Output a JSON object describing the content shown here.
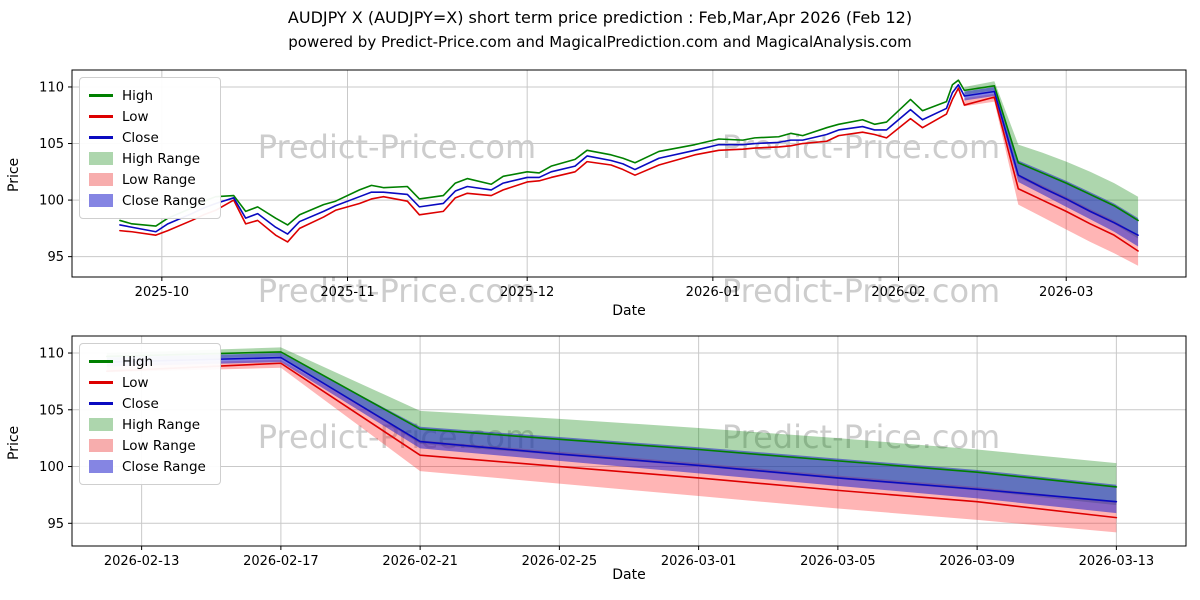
{
  "title": "AUDJPY X (AUDJPY=X) short term price prediction : Feb,Mar,Apr 2026 (Feb 12)",
  "subtitle": "powered by Predict-Price.com and MagicalPrediction.com and MagicalAnalysis.com",
  "watermark": {
    "text": "Predict-Price.com"
  },
  "colors": {
    "high_line": "#008000",
    "low_line": "#dd0000",
    "close_line": "#0a0ac0",
    "high_band": "rgba(0,128,0,0.32)",
    "low_band": "rgba(255,30,30,0.33)",
    "close_band": "rgba(34,34,204,0.55)",
    "grid": "#c9c9c9",
    "watermark_gray": "#cdcdcd"
  },
  "legend": {
    "items": [
      {
        "label": "High",
        "type": "line",
        "color": "#008000"
      },
      {
        "label": "Low",
        "type": "line",
        "color": "#dd0000"
      },
      {
        "label": "Close",
        "type": "line",
        "color": "#0a0ac0"
      },
      {
        "label": "High Range",
        "type": "patch",
        "color": "#add6ad"
      },
      {
        "label": "Low Range",
        "type": "patch",
        "color": "#f7adad"
      },
      {
        "label": "Close Range",
        "type": "patch",
        "color": "#8585e3"
      }
    ]
  },
  "chart_data": [
    {
      "type": "line",
      "name": "historical-and-forecast",
      "xlabel": "Date",
      "ylabel": "Price",
      "x_range": [
        "2025-09-16",
        "2026-03-21"
      ],
      "ylim": [
        93.2,
        111.5
      ],
      "yticks": [
        95,
        100,
        105,
        110
      ],
      "grid": true,
      "legend_position": "upper-left",
      "xticks": [
        {
          "label": "2025-10",
          "date": "2025-10-01"
        },
        {
          "label": "2025-11",
          "date": "2025-11-01"
        },
        {
          "label": "2025-12",
          "date": "2025-12-01"
        },
        {
          "label": "2026-01",
          "date": "2026-01-01"
        },
        {
          "label": "2026-02",
          "date": "2026-02-01"
        },
        {
          "label": "2026-03",
          "date": "2026-03-01"
        }
      ],
      "series": [
        {
          "name": "High",
          "color": "#008000",
          "dates": [
            "2025-09-24",
            "2025-09-26",
            "2025-09-30",
            "2025-10-02",
            "2025-10-06",
            "2025-10-08",
            "2025-10-10",
            "2025-10-13",
            "2025-10-15",
            "2025-10-17",
            "2025-10-20",
            "2025-10-22",
            "2025-10-24",
            "2025-10-28",
            "2025-10-30",
            "2025-11-03",
            "2025-11-05",
            "2025-11-07",
            "2025-11-11",
            "2025-11-13",
            "2025-11-17",
            "2025-11-19",
            "2025-11-21",
            "2025-11-25",
            "2025-11-27",
            "2025-12-01",
            "2025-12-03",
            "2025-12-05",
            "2025-12-09",
            "2025-12-11",
            "2025-12-15",
            "2025-12-17",
            "2025-12-19",
            "2025-12-23",
            "2025-12-29",
            "2026-01-02",
            "2026-01-06",
            "2026-01-08",
            "2026-01-12",
            "2026-01-14",
            "2026-01-16",
            "2026-01-20",
            "2026-01-22",
            "2026-01-26",
            "2026-01-28",
            "2026-01-30",
            "2026-02-03",
            "2026-02-05",
            "2026-02-09",
            "2026-02-10",
            "2026-02-11",
            "2026-02-12",
            "2026-02-17",
            "2026-02-21",
            "2026-02-25",
            "2026-03-01",
            "2026-03-05",
            "2026-03-09",
            "2026-03-13"
          ],
          "values": [
            98.2,
            97.9,
            97.7,
            98.4,
            99.3,
            99.9,
            100.3,
            100.4,
            99.0,
            99.4,
            98.4,
            97.8,
            98.7,
            99.6,
            99.9,
            100.9,
            101.3,
            101.1,
            101.2,
            100.1,
            100.4,
            101.5,
            101.9,
            101.4,
            102.1,
            102.5,
            102.4,
            103.0,
            103.6,
            104.4,
            104.0,
            103.7,
            103.3,
            104.3,
            104.9,
            105.4,
            105.3,
            105.5,
            105.6,
            105.9,
            105.7,
            106.4,
            106.7,
            107.1,
            106.7,
            106.9,
            108.9,
            107.9,
            108.7,
            110.2,
            110.6,
            109.7,
            110.1,
            103.3,
            102.4,
            101.5,
            100.5,
            99.5,
            98.2
          ]
        },
        {
          "name": "Low",
          "color": "#dd0000",
          "dates": [
            "2025-09-24",
            "2025-09-26",
            "2025-09-30",
            "2025-10-02",
            "2025-10-06",
            "2025-10-08",
            "2025-10-10",
            "2025-10-13",
            "2025-10-15",
            "2025-10-17",
            "2025-10-20",
            "2025-10-22",
            "2025-10-24",
            "2025-10-28",
            "2025-10-30",
            "2025-11-03",
            "2025-11-05",
            "2025-11-07",
            "2025-11-11",
            "2025-11-13",
            "2025-11-17",
            "2025-11-19",
            "2025-11-21",
            "2025-11-25",
            "2025-11-27",
            "2025-12-01",
            "2025-12-03",
            "2025-12-05",
            "2025-12-09",
            "2025-12-11",
            "2025-12-15",
            "2025-12-17",
            "2025-12-19",
            "2025-12-23",
            "2025-12-29",
            "2026-01-02",
            "2026-01-06",
            "2026-01-08",
            "2026-01-12",
            "2026-01-14",
            "2026-01-16",
            "2026-01-20",
            "2026-01-22",
            "2026-01-26",
            "2026-01-28",
            "2026-01-30",
            "2026-02-03",
            "2026-02-05",
            "2026-02-09",
            "2026-02-10",
            "2026-02-11",
            "2026-02-12",
            "2026-02-17",
            "2026-02-21",
            "2026-02-25",
            "2026-03-01",
            "2026-03-05",
            "2026-03-09",
            "2026-03-13"
          ],
          "values": [
            97.3,
            97.2,
            96.9,
            97.3,
            98.2,
            98.7,
            99.1,
            100.0,
            97.9,
            98.2,
            96.9,
            96.3,
            97.5,
            98.5,
            99.1,
            99.7,
            100.1,
            100.3,
            99.9,
            98.7,
            99.0,
            100.2,
            100.6,
            100.4,
            100.9,
            101.6,
            101.7,
            102.0,
            102.5,
            103.4,
            103.1,
            102.7,
            102.2,
            103.1,
            104.0,
            104.4,
            104.5,
            104.6,
            104.7,
            104.8,
            105.0,
            105.2,
            105.7,
            106.0,
            105.8,
            105.5,
            107.2,
            106.4,
            107.6,
            108.9,
            109.9,
            108.4,
            109.1,
            101.0,
            100.0,
            99.0,
            97.9,
            96.9,
            95.5
          ]
        },
        {
          "name": "Close",
          "color": "#0a0ac0",
          "dates": [
            "2025-09-24",
            "2025-09-26",
            "2025-09-30",
            "2025-10-02",
            "2025-10-06",
            "2025-10-08",
            "2025-10-10",
            "2025-10-13",
            "2025-10-15",
            "2025-10-17",
            "2025-10-20",
            "2025-10-22",
            "2025-10-24",
            "2025-10-28",
            "2025-10-30",
            "2025-11-03",
            "2025-11-05",
            "2025-11-07",
            "2025-11-11",
            "2025-11-13",
            "2025-11-17",
            "2025-11-19",
            "2025-11-21",
            "2025-11-25",
            "2025-11-27",
            "2025-12-01",
            "2025-12-03",
            "2025-12-05",
            "2025-12-09",
            "2025-12-11",
            "2025-12-15",
            "2025-12-17",
            "2025-12-19",
            "2025-12-23",
            "2025-12-29",
            "2026-01-02",
            "2026-01-06",
            "2026-01-08",
            "2026-01-12",
            "2026-01-14",
            "2026-01-16",
            "2026-01-20",
            "2026-01-22",
            "2026-01-26",
            "2026-01-28",
            "2026-01-30",
            "2026-02-03",
            "2026-02-05",
            "2026-02-09",
            "2026-02-10",
            "2026-02-11",
            "2026-02-12",
            "2026-02-17",
            "2026-02-21",
            "2026-02-25",
            "2026-03-01",
            "2026-03-05",
            "2026-03-09",
            "2026-03-13"
          ],
          "values": [
            97.8,
            97.6,
            97.2,
            97.9,
            98.8,
            99.3,
            99.7,
            100.2,
            98.4,
            98.8,
            97.6,
            97.0,
            98.1,
            99.0,
            99.5,
            100.3,
            100.7,
            100.7,
            100.5,
            99.4,
            99.7,
            100.8,
            101.2,
            100.9,
            101.5,
            102.0,
            102.0,
            102.5,
            103.0,
            103.9,
            103.5,
            103.2,
            102.7,
            103.7,
            104.4,
            104.9,
            104.9,
            105.0,
            105.1,
            105.3,
            105.3,
            105.8,
            106.2,
            106.5,
            106.2,
            106.2,
            108.0,
            107.1,
            108.1,
            109.5,
            110.2,
            109.2,
            109.6,
            102.2,
            101.1,
            100.1,
            99.0,
            98.0,
            96.9
          ]
        }
      ],
      "bands": [
        {
          "name": "High Range",
          "color": "rgba(0,128,0,0.32)",
          "dates": [
            "2026-02-12",
            "2026-02-17",
            "2026-02-21",
            "2026-02-25",
            "2026-03-01",
            "2026-03-05",
            "2026-03-09",
            "2026-03-13"
          ],
          "upper": [
            110.0,
            110.5,
            104.9,
            104.2,
            103.4,
            102.5,
            101.5,
            100.3
          ],
          "lower": [
            109.3,
            109.7,
            102.0,
            101.0,
            100.0,
            98.9,
            97.9,
            96.6
          ]
        },
        {
          "name": "Low Range",
          "color": "rgba(255,30,30,0.33)",
          "dates": [
            "2026-02-12",
            "2026-02-17",
            "2026-02-21",
            "2026-02-25",
            "2026-03-01",
            "2026-03-05",
            "2026-03-09",
            "2026-03-13"
          ],
          "upper": [
            109.0,
            109.4,
            102.3,
            101.3,
            100.3,
            99.2,
            98.2,
            96.9
          ],
          "lower": [
            108.3,
            108.7,
            99.6,
            98.5,
            97.4,
            96.3,
            95.3,
            94.2
          ]
        },
        {
          "name": "Close Range",
          "color": "rgba(34,34,204,0.55)",
          "dates": [
            "2026-02-12",
            "2026-02-17",
            "2026-02-21",
            "2026-02-25",
            "2026-03-01",
            "2026-03-05",
            "2026-03-09",
            "2026-03-13"
          ],
          "upper": [
            109.6,
            110.0,
            103.5,
            102.6,
            101.7,
            100.7,
            99.7,
            98.4
          ],
          "lower": [
            108.8,
            109.2,
            101.6,
            100.5,
            99.4,
            98.3,
            97.2,
            95.9
          ]
        }
      ]
    },
    {
      "type": "line",
      "name": "forecast-detail",
      "xlabel": "Date",
      "ylabel": "Price",
      "x_range": [
        "2026-02-11",
        "2026-03-15"
      ],
      "ylim": [
        93.0,
        111.5
      ],
      "yticks": [
        95,
        100,
        105,
        110
      ],
      "grid": true,
      "legend_position": "upper-left",
      "xticks": [
        {
          "label": "2026-02-13",
          "date": "2026-02-13"
        },
        {
          "label": "2026-02-17",
          "date": "2026-02-17"
        },
        {
          "label": "2026-02-21",
          "date": "2026-02-21"
        },
        {
          "label": "2026-02-25",
          "date": "2026-02-25"
        },
        {
          "label": "2026-03-01",
          "date": "2026-03-01"
        },
        {
          "label": "2026-03-05",
          "date": "2026-03-05"
        },
        {
          "label": "2026-03-09",
          "date": "2026-03-09"
        },
        {
          "label": "2026-03-13",
          "date": "2026-03-13"
        }
      ],
      "series": [
        {
          "name": "High",
          "color": "#008000",
          "dates": [
            "2026-02-12",
            "2026-02-17",
            "2026-02-21",
            "2026-02-25",
            "2026-03-01",
            "2026-03-05",
            "2026-03-09",
            "2026-03-13"
          ],
          "values": [
            109.7,
            110.1,
            103.3,
            102.4,
            101.5,
            100.5,
            99.5,
            98.2
          ]
        },
        {
          "name": "Low",
          "color": "#dd0000",
          "dates": [
            "2026-02-12",
            "2026-02-17",
            "2026-02-21",
            "2026-02-25",
            "2026-03-01",
            "2026-03-05",
            "2026-03-09",
            "2026-03-13"
          ],
          "values": [
            108.4,
            109.1,
            101.0,
            100.0,
            99.0,
            97.9,
            96.9,
            95.5
          ]
        },
        {
          "name": "Close",
          "color": "#0a0ac0",
          "dates": [
            "2026-02-12",
            "2026-02-17",
            "2026-02-21",
            "2026-02-25",
            "2026-03-01",
            "2026-03-05",
            "2026-03-09",
            "2026-03-13"
          ],
          "values": [
            109.2,
            109.6,
            102.2,
            101.1,
            100.1,
            99.0,
            98.0,
            96.9
          ]
        }
      ],
      "bands": [
        {
          "name": "High Range",
          "color": "rgba(0,128,0,0.32)",
          "dates": [
            "2026-02-12",
            "2026-02-17",
            "2026-02-21",
            "2026-02-25",
            "2026-03-01",
            "2026-03-05",
            "2026-03-09",
            "2026-03-13"
          ],
          "upper": [
            110.0,
            110.5,
            104.9,
            104.2,
            103.4,
            102.5,
            101.5,
            100.3
          ],
          "lower": [
            109.3,
            109.7,
            102.0,
            101.0,
            100.0,
            98.9,
            97.9,
            96.6
          ]
        },
        {
          "name": "Low Range",
          "color": "rgba(255,30,30,0.33)",
          "dates": [
            "2026-02-12",
            "2026-02-17",
            "2026-02-21",
            "2026-02-25",
            "2026-03-01",
            "2026-03-05",
            "2026-03-09",
            "2026-03-13"
          ],
          "upper": [
            109.0,
            109.4,
            102.3,
            101.3,
            100.3,
            99.2,
            98.2,
            96.9
          ],
          "lower": [
            108.3,
            108.7,
            99.6,
            98.5,
            97.4,
            96.3,
            95.3,
            94.2
          ]
        },
        {
          "name": "Close Range",
          "color": "rgba(34,34,204,0.55)",
          "dates": [
            "2026-02-12",
            "2026-02-17",
            "2026-02-21",
            "2026-02-25",
            "2026-03-01",
            "2026-03-05",
            "2026-03-09",
            "2026-03-13"
          ],
          "upper": [
            109.6,
            110.0,
            103.5,
            102.6,
            101.7,
            100.7,
            99.7,
            98.4
          ],
          "lower": [
            108.8,
            109.2,
            101.6,
            100.5,
            99.4,
            98.3,
            97.2,
            95.9
          ]
        }
      ]
    }
  ]
}
